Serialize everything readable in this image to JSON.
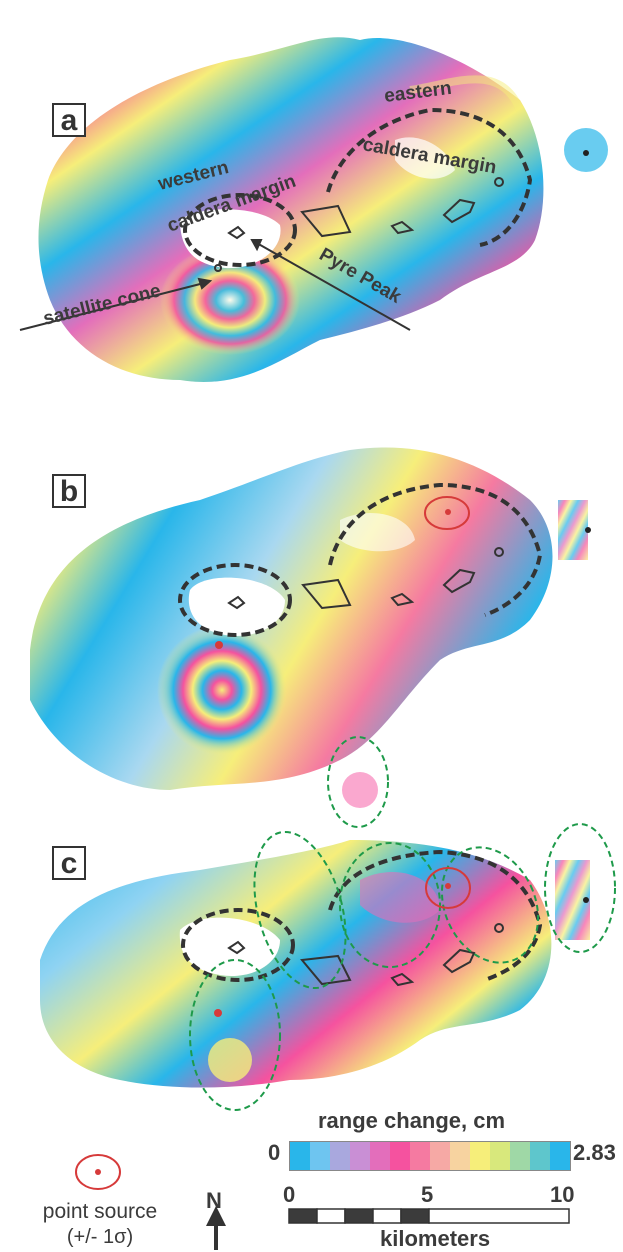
{
  "panels": [
    {
      "id": "a",
      "label": "a"
    },
    {
      "id": "b",
      "label": "b"
    },
    {
      "id": "c",
      "label": "c"
    }
  ],
  "annotations": {
    "eastern": "eastern",
    "caldera_margin_east": "caldera margin",
    "western": "western",
    "caldera_margin_west": "caldera margin",
    "satellite_cone": "satellite cone",
    "pyre_peak": "Pyre Peak"
  },
  "legend": {
    "title": "range change, cm",
    "min": "0",
    "max": "2.83",
    "colors": [
      "#29b6ea",
      "#6ec5f0",
      "#a9a8de",
      "#c98fd5",
      "#e36ebb",
      "#f5529f",
      "#f57aa1",
      "#f6a9a5",
      "#f7d3a0",
      "#f6ee7a",
      "#d8e87c",
      "#9fd8a6",
      "#5ec6cc",
      "#29b6ea"
    ]
  },
  "scale": {
    "labels": [
      "0",
      "5",
      "10"
    ],
    "unit": "kilometers"
  },
  "point_source": {
    "label": "point source",
    "uncertainty": "(+/- 1σ)",
    "color": "#d63a3a"
  },
  "north_label": "N",
  "colors": {
    "caldera_outline": "#333333",
    "uncertainty_ellipse": "#1e9a4a"
  }
}
